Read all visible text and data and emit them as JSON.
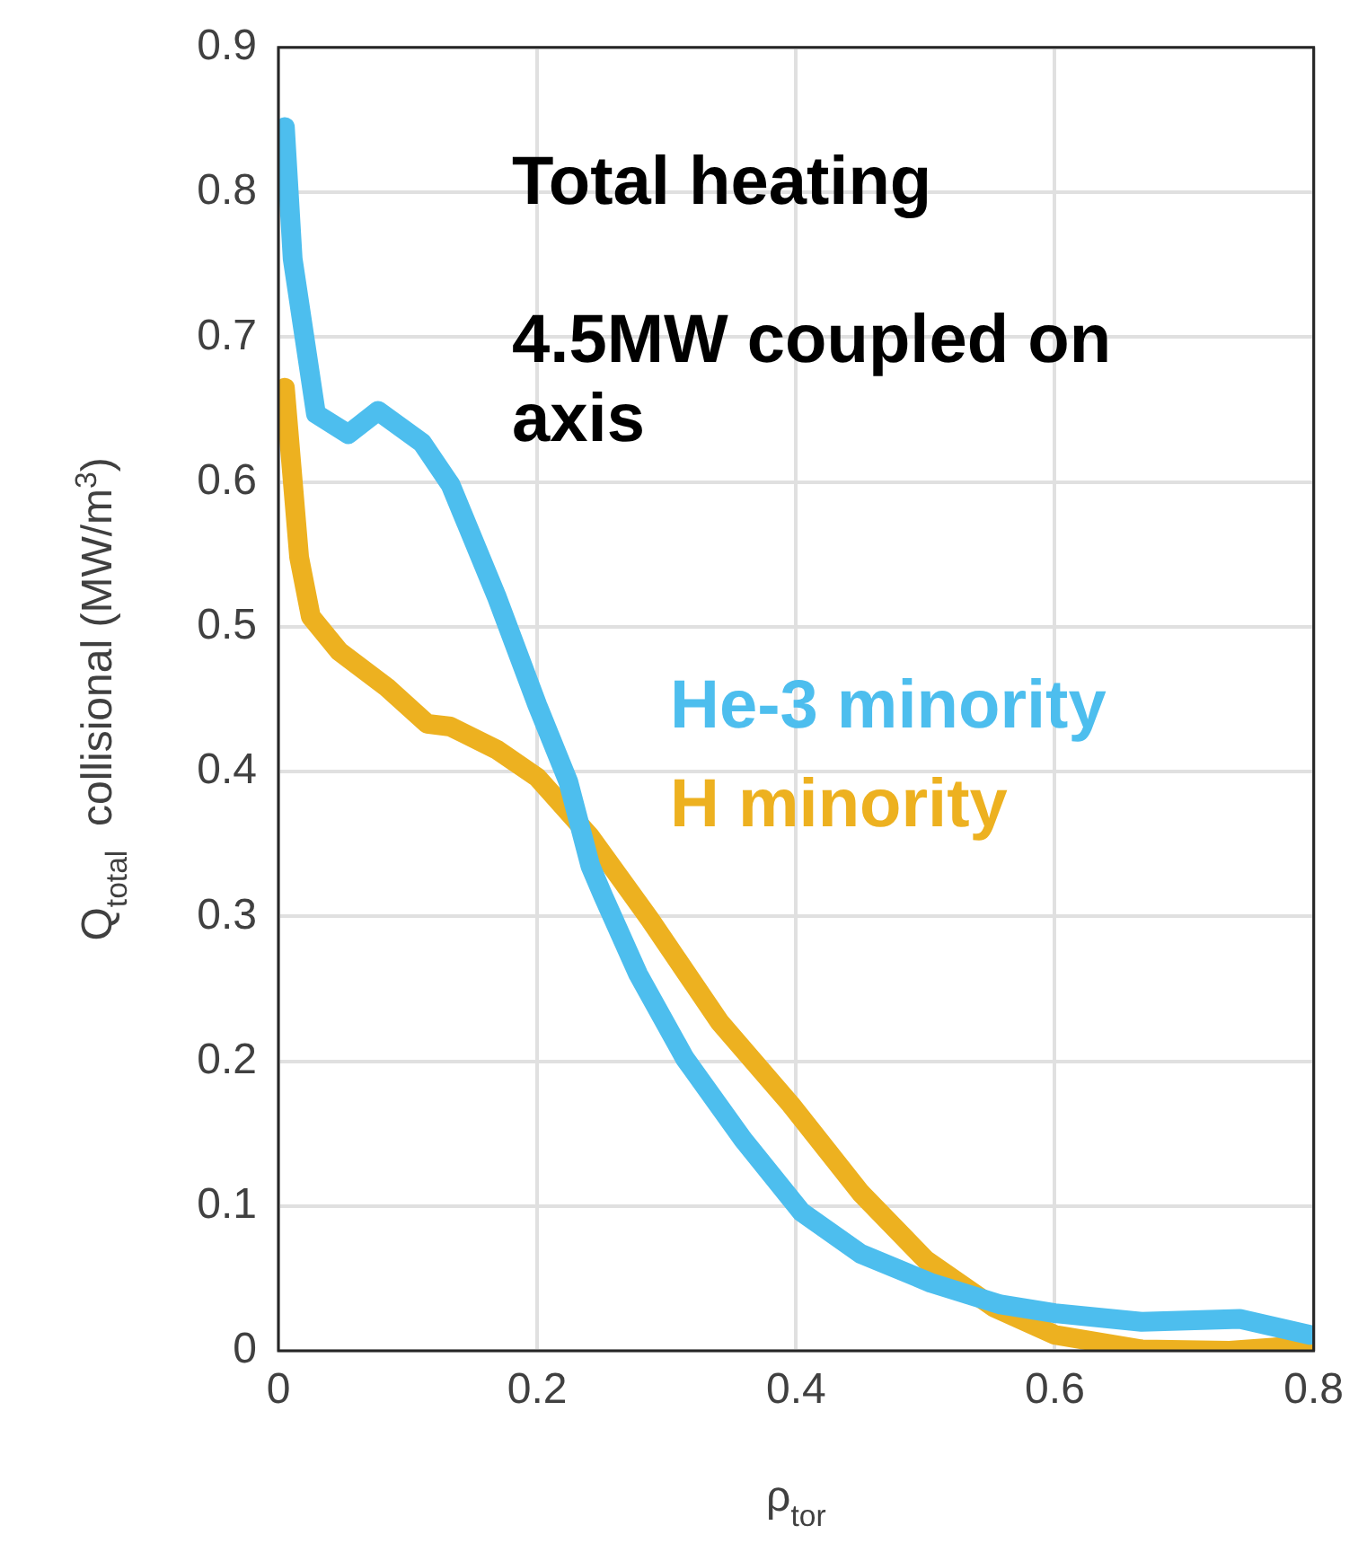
{
  "chart_data": {
    "type": "line",
    "xlabel": "ρ$_{tor}$",
    "ylabel": "Q$_{total}$  collisional (MW/m$^{3}$)",
    "annotations": [
      "Total heating",
      "4.5MW coupled on axis"
    ],
    "series": [
      {
        "name": "He-3 minority",
        "color": "#4dbeee",
        "x": [
          0.005,
          0.011,
          0.029,
          0.054,
          0.077,
          0.111,
          0.133,
          0.169,
          0.2,
          0.224,
          0.241,
          0.251,
          0.278,
          0.314,
          0.359,
          0.404,
          0.45,
          0.504,
          0.558,
          0.6,
          0.667,
          0.743,
          0.797
        ],
        "values": [
          0.845,
          0.754,
          0.647,
          0.633,
          0.649,
          0.627,
          0.598,
          0.52,
          0.446,
          0.393,
          0.335,
          0.314,
          0.26,
          0.202,
          0.146,
          0.096,
          0.067,
          0.047,
          0.032,
          0.026,
          0.02,
          0.022,
          0.011
        ]
      },
      {
        "name": "H minority",
        "color": "#edb120",
        "x": [
          0.005,
          0.016,
          0.025,
          0.047,
          0.084,
          0.115,
          0.133,
          0.169,
          0.2,
          0.241,
          0.287,
          0.341,
          0.396,
          0.45,
          0.5,
          0.553,
          0.6,
          0.667,
          0.735,
          0.797
        ],
        "values": [
          0.665,
          0.548,
          0.507,
          0.483,
          0.458,
          0.433,
          0.431,
          0.415,
          0.396,
          0.355,
          0.298,
          0.227,
          0.17,
          0.109,
          0.063,
          0.03,
          0.011,
          0.001,
          0,
          0.004
        ]
      }
    ],
    "xlim": [
      0,
      0.8
    ],
    "xticks": [
      0,
      0.2,
      0.4,
      0.6,
      0.8
    ],
    "ylim": [
      0,
      0.9
    ],
    "yticks": [
      0,
      0.1,
      0.2,
      0.3,
      0.4,
      0.5,
      0.6,
      0.7,
      0.8,
      0.9
    ],
    "grid": true,
    "legend": false,
    "marker": "none",
    "line_style": "solid"
  }
}
